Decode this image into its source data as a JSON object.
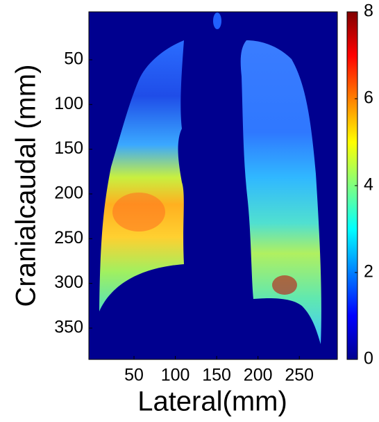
{
  "chart_data": {
    "type": "heatmap",
    "xlabel": "Lateral(mm)",
    "ylabel": "Cranialcaudal (mm)",
    "xlim": [
      -4.6,
      296
    ],
    "xticks": [
      50,
      100,
      150,
      200,
      250
    ],
    "ylim": [
      385,
      -3.6
    ],
    "yticks": [
      50,
      100,
      150,
      200,
      250,
      300,
      350
    ],
    "colorbar": {
      "lim": [
        0,
        8
      ],
      "ticks": [
        0,
        2,
        4,
        6,
        8
      ]
    }
  }
}
